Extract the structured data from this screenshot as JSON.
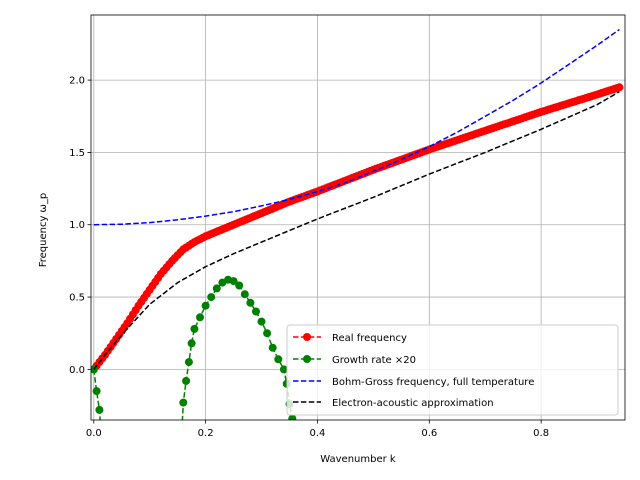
{
  "chart_data": {
    "type": "line",
    "xlabel": "Wavenumber k",
    "ylabel": "Frequency ω_p",
    "xlim": [
      -0.005,
      0.95
    ],
    "ylim": [
      -0.35,
      2.45
    ],
    "xticks": [
      0.0,
      0.2,
      0.4,
      0.6,
      0.8
    ],
    "xtick_labels": [
      "0.0",
      "0.2",
      "0.4",
      "0.6",
      "0.8"
    ],
    "yticks": [
      0.0,
      0.5,
      1.0,
      1.5,
      2.0
    ],
    "ytick_labels": [
      "0.0",
      "0.5",
      "1.0",
      "1.5",
      "2.0"
    ],
    "grid": true,
    "legend_position": "lower-right",
    "series": [
      {
        "name": "Real frequency",
        "style": "dashed-markers",
        "color": "#ff0000",
        "x": [
          0.0,
          0.02,
          0.04,
          0.06,
          0.08,
          0.1,
          0.12,
          0.14,
          0.16,
          0.18,
          0.2,
          0.25,
          0.3,
          0.35,
          0.4,
          0.5,
          0.6,
          0.7,
          0.8,
          0.9,
          0.94
        ],
        "y": [
          0.0,
          0.1,
          0.21,
          0.32,
          0.44,
          0.55,
          0.66,
          0.75,
          0.83,
          0.88,
          0.92,
          1.0,
          1.08,
          1.16,
          1.23,
          1.38,
          1.52,
          1.65,
          1.78,
          1.9,
          1.95
        ]
      },
      {
        "name": "Growth rate ×20",
        "style": "dashed-markers",
        "color": "#008000",
        "x": [
          0.0,
          0.005,
          0.01,
          0.015,
          0.02,
          0.155,
          0.16,
          0.165,
          0.17,
          0.175,
          0.18,
          0.19,
          0.2,
          0.21,
          0.22,
          0.23,
          0.24,
          0.25,
          0.26,
          0.27,
          0.28,
          0.29,
          0.3,
          0.31,
          0.32,
          0.33,
          0.34,
          0.345,
          0.35,
          0.355
        ],
        "y": [
          0.0,
          -0.15,
          -0.28,
          -0.55,
          -0.9,
          -0.6,
          -0.23,
          -0.08,
          0.05,
          0.18,
          0.28,
          0.36,
          0.44,
          0.5,
          0.56,
          0.6,
          0.62,
          0.61,
          0.58,
          0.52,
          0.46,
          0.4,
          0.33,
          0.25,
          0.15,
          0.07,
          0.0,
          -0.1,
          -0.24,
          -0.34
        ]
      },
      {
        "name": "Bohm-Gross frequency, full temperature",
        "style": "dashed",
        "color": "#0000ff",
        "x": [
          0.0,
          0.05,
          0.1,
          0.15,
          0.2,
          0.25,
          0.3,
          0.35,
          0.4,
          0.45,
          0.5,
          0.55,
          0.6,
          0.65,
          0.7,
          0.75,
          0.8,
          0.85,
          0.9,
          0.94
        ],
        "y": [
          1.0,
          1.004,
          1.015,
          1.034,
          1.06,
          1.09,
          1.13,
          1.175,
          1.23,
          1.29,
          1.37,
          1.45,
          1.54,
          1.64,
          1.75,
          1.86,
          1.98,
          2.11,
          2.24,
          2.35
        ]
      },
      {
        "name": "Electron-acoustic approximation",
        "style": "dashed",
        "color": "#000000",
        "x": [
          0.0,
          0.02,
          0.05,
          0.1,
          0.15,
          0.2,
          0.25,
          0.3,
          0.35,
          0.4,
          0.5,
          0.6,
          0.7,
          0.8,
          0.9,
          0.94
        ],
        "y": [
          0.0,
          0.1,
          0.24,
          0.45,
          0.6,
          0.71,
          0.8,
          0.88,
          0.96,
          1.04,
          1.19,
          1.35,
          1.5,
          1.66,
          1.83,
          1.92
        ]
      }
    ]
  }
}
